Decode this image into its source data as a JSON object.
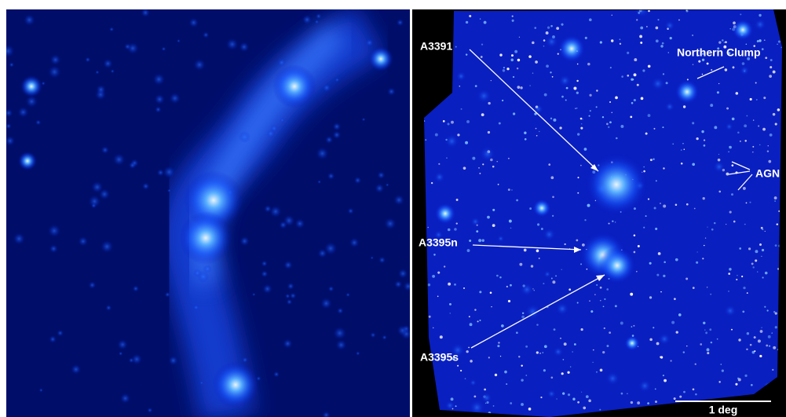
{
  "labels": {
    "left_cluster": "A3391",
    "top_right": "Northern Clump",
    "agn": "AGN",
    "middle": "A3395n",
    "bottom": "A3395s"
  },
  "scale_bar": "1 deg"
}
